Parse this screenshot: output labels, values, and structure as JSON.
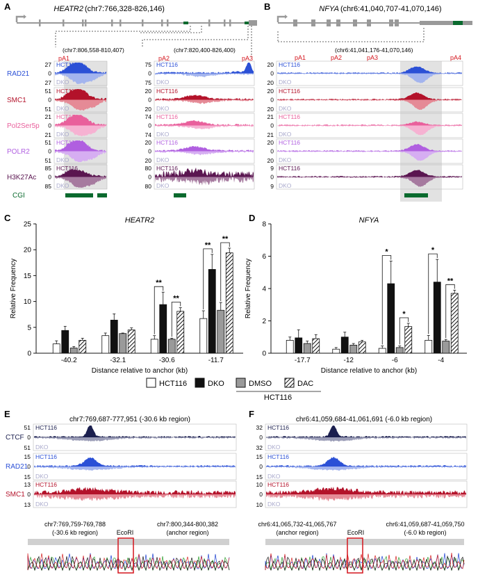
{
  "panel_letters": [
    "A",
    "B",
    "C",
    "D",
    "E",
    "F"
  ],
  "panelA": {
    "gene": "HEATR2",
    "coords": "(chr7:766,328-826,146)",
    "box1_coords": "(chr7:806,558-810,407)",
    "box2_coords": "(chr7:820,400-826,400)",
    "pa_labels": [
      "pA1",
      "pA2",
      "pA3"
    ],
    "cgi_label": "CGI",
    "tracks": [
      {
        "name": "RAD21",
        "color": "#2b50d6",
        "light": "#a3b4ee",
        "box1": {
          "top": "27",
          "bottom": "27"
        },
        "box2": {
          "top": "75",
          "bottom": "75"
        }
      },
      {
        "name": "SMC1",
        "color": "#b3122a",
        "light": "#e58a96",
        "box1": {
          "top": "51",
          "bottom": "51"
        },
        "box2": {
          "top": "20",
          "bottom": "20"
        }
      },
      {
        "name": "Pol2Ser5p",
        "color": "#e9609c",
        "light": "#f6b2d2",
        "box1": {
          "top": "21",
          "bottom": "21"
        },
        "box2": {
          "top": "74",
          "bottom": "74"
        }
      },
      {
        "name": "POLR2",
        "color": "#b05fe0",
        "light": "#d6aef2",
        "box1": {
          "top": "51",
          "bottom": "51"
        },
        "box2": {
          "top": "20",
          "bottom": "20"
        }
      },
      {
        "name": "H3K27Ac",
        "color": "#5a1550",
        "light": "#a67a9f",
        "box1": {
          "top": "85",
          "bottom": "85"
        },
        "box2": {
          "top": "80",
          "bottom": "80"
        }
      }
    ]
  },
  "panelB": {
    "gene": "NFYA",
    "coords": "(chr6:41,040,707-41,070,146)",
    "box_coords": "(chr6:41,041,176-41,070,146)",
    "pa_labels": [
      "pA1",
      "pA2",
      "pA3",
      "pA4"
    ],
    "tracks": [
      {
        "top": "20",
        "bottom": "20"
      },
      {
        "top": "20",
        "bottom": "20"
      },
      {
        "top": "21",
        "bottom": "21"
      },
      {
        "top": "20",
        "bottom": "20"
      },
      {
        "top": "9",
        "bottom": "9"
      }
    ]
  },
  "sample_labels": {
    "top": "HCT116",
    "bottom": "DKO",
    "zero": "0"
  },
  "legend": {
    "items": [
      "HCT116",
      "DKO",
      "DMSO",
      "DAC"
    ],
    "group": "HCT116"
  },
  "panelE": {
    "title": "chr7:769,687-777,951 (-30.6 kb region)",
    "tracks": [
      {
        "name": "CTCF",
        "top": "51",
        "bottom": "51"
      },
      {
        "name": "RAD21",
        "top": "15",
        "bottom": "15"
      },
      {
        "name": "SMC1",
        "top": "13",
        "bottom": "13"
      }
    ],
    "seq_left": "chr7:769,759-769,788",
    "seq_left2": "(-30.6 kb region)",
    "seq_right": "chr7:800,344-800,382",
    "seq_right2": "(anchor region)",
    "ecori": "EcoRI"
  },
  "panelF": {
    "title": "chr6:41,059,684-41,061,691 (-6.0 kb region)",
    "tracks": [
      {
        "name": "",
        "top": "32",
        "bottom": "32"
      },
      {
        "name": "",
        "top": "15",
        "bottom": "15"
      },
      {
        "name": "",
        "top": "10",
        "bottom": "10"
      }
    ],
    "seq_left": "chr6:41,065,732-41,065,767",
    "seq_left2": "(anchor region)",
    "seq_right": "chr6:41,059,687-41,059,750",
    "seq_right2": "(-6.0 kb region)",
    "ecori": "EcoRI"
  },
  "track_colors": {
    "CTCF": "#1b1f4e",
    "RAD21": "#2b50d6",
    "SMC1": "#b3122a",
    "CTCF_light": "#9a9cb6",
    "RAD21_light": "#a3b4ee",
    "SMC1_light": "#e58a96"
  },
  "chart_data": [
    {
      "type": "bar",
      "title": "HEATR2",
      "xlabel": "Distance relative to anchor (kb)",
      "ylabel": "Relative Frequency",
      "categories": [
        "-40.2",
        "-32.1",
        "-30.6",
        "-11.7"
      ],
      "ylim": [
        0,
        25
      ],
      "yticks": [
        0,
        5,
        10,
        15,
        20,
        25
      ],
      "series": [
        {
          "name": "HCT116",
          "values": [
            1.8,
            3.4,
            2.7,
            6.7
          ],
          "errors": [
            0.6,
            0.5,
            0.7,
            1.5
          ]
        },
        {
          "name": "DKO",
          "values": [
            4.4,
            6.4,
            9.4,
            16.2
          ],
          "errors": [
            0.8,
            1.2,
            2.4,
            2.9
          ]
        },
        {
          "name": "DMSO",
          "values": [
            1.0,
            3.8,
            2.7,
            8.3
          ],
          "errors": [
            0.3,
            0.1,
            0.2,
            1.5
          ]
        },
        {
          "name": "DAC",
          "values": [
            2.5,
            4.5,
            8.1,
            19.4
          ],
          "errors": [
            0.4,
            0.4,
            0.7,
            0.9
          ]
        }
      ],
      "significance": [
        {
          "category": "-30.6",
          "pair": [
            "HCT116",
            "DKO"
          ],
          "label": "**"
        },
        {
          "category": "-30.6",
          "pair": [
            "DMSO",
            "DAC"
          ],
          "label": "**"
        },
        {
          "category": "-11.7",
          "pair": [
            "HCT116",
            "DKO"
          ],
          "label": "**"
        },
        {
          "category": "-11.7",
          "pair": [
            "DMSO",
            "DAC"
          ],
          "label": "**"
        }
      ]
    },
    {
      "type": "bar",
      "title": "NFYA",
      "xlabel": "Distance relative to anchor (kb)",
      "ylabel": "Relative Frequency",
      "categories": [
        "-17.7",
        "-12",
        "-6",
        "-4"
      ],
      "ylim": [
        0,
        8
      ],
      "yticks": [
        0,
        2,
        4,
        6,
        8
      ],
      "series": [
        {
          "name": "HCT116",
          "values": [
            0.8,
            0.25,
            0.3,
            0.8
          ],
          "errors": [
            0.2,
            0.1,
            0.15,
            0.3
          ]
        },
        {
          "name": "DKO",
          "values": [
            0.95,
            1.0,
            4.3,
            4.4
          ],
          "errors": [
            0.5,
            0.3,
            1.4,
            1.4
          ]
        },
        {
          "name": "DMSO",
          "values": [
            0.6,
            0.5,
            0.35,
            0.75
          ],
          "errors": [
            0.15,
            0.1,
            0.1,
            0.1
          ]
        },
        {
          "name": "DAC",
          "values": [
            0.9,
            0.7,
            1.65,
            3.7
          ],
          "errors": [
            0.25,
            0.1,
            0.2,
            0.2
          ]
        }
      ],
      "significance": [
        {
          "category": "-6",
          "pair": [
            "HCT116",
            "DKO"
          ],
          "label": "*"
        },
        {
          "category": "-6",
          "pair": [
            "DMSO",
            "DAC"
          ],
          "label": "*"
        },
        {
          "category": "-4",
          "pair": [
            "HCT116",
            "DKO"
          ],
          "label": "*"
        },
        {
          "category": "-4",
          "pair": [
            "DMSO",
            "DAC"
          ],
          "label": "**"
        }
      ]
    }
  ]
}
